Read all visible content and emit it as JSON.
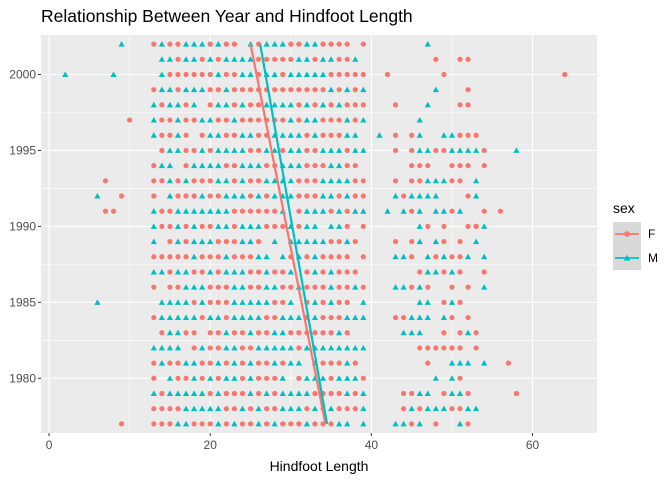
{
  "chart_data": {
    "type": "scatter",
    "title": "Relationship Between Year and Hindfoot Length",
    "xlabel": "Hindfoot Length",
    "ylabel": "",
    "xlim": [
      -1,
      68
    ],
    "ylim": [
      1976.4,
      2002.6
    ],
    "x_ticks": [
      0,
      20,
      40,
      60
    ],
    "y_ticks": [
      1980,
      1985,
      1990,
      1995,
      2000
    ],
    "grid": true,
    "legend": {
      "title": "sex",
      "position": "right"
    },
    "colors": {
      "F": "#F8766D",
      "M": "#00BFC4",
      "panel": "#EBEBEB",
      "grid": "#FFFFFF",
      "legend_key": "#D9D9D9"
    },
    "series": [
      {
        "name": "F",
        "marker": "circle",
        "dense_x_range": [
          13,
          38
        ],
        "second_cluster_x_range": [
          45,
          52
        ],
        "outliers": [
          {
            "x": 64,
            "y": 2000
          },
          {
            "x": 42,
            "y": 2000
          },
          {
            "x": 10,
            "y": 1997
          },
          {
            "x": 7,
            "y": 1993
          },
          {
            "x": 7,
            "y": 1991
          },
          {
            "x": 8,
            "y": 1991
          },
          {
            "x": 9,
            "y": 1992
          },
          {
            "x": 9,
            "y": 1977
          },
          {
            "x": 38,
            "y": 1993
          },
          {
            "x": 56,
            "y": 1991
          },
          {
            "x": 57,
            "y": 1981
          },
          {
            "x": 58,
            "y": 1979
          },
          {
            "x": 52,
            "y": 1998
          },
          {
            "x": 53,
            "y": 1990
          }
        ],
        "trend": {
          "x_start": 34.3,
          "y_start": 1977,
          "x_end": 25.0,
          "y_end": 2002
        }
      },
      {
        "name": "M",
        "marker": "triangle",
        "dense_x_range": [
          14,
          39
        ],
        "second_cluster_x_range": [
          44,
          53
        ],
        "outliers": [
          {
            "x": 2,
            "y": 2000
          },
          {
            "x": 8,
            "y": 2000
          },
          {
            "x": 9,
            "y": 2002
          },
          {
            "x": 47,
            "y": 2002
          },
          {
            "x": 6,
            "y": 1985
          },
          {
            "x": 6,
            "y": 1992
          },
          {
            "x": 58,
            "y": 1995
          },
          {
            "x": 48,
            "y": 1999
          },
          {
            "x": 41,
            "y": 1996
          },
          {
            "x": 42,
            "y": 1991
          },
          {
            "x": 54,
            "y": 1990
          }
        ],
        "trend": {
          "x_start": 34.5,
          "y_start": 1977,
          "x_end": 26.2,
          "y_end": 2002
        }
      }
    ]
  }
}
